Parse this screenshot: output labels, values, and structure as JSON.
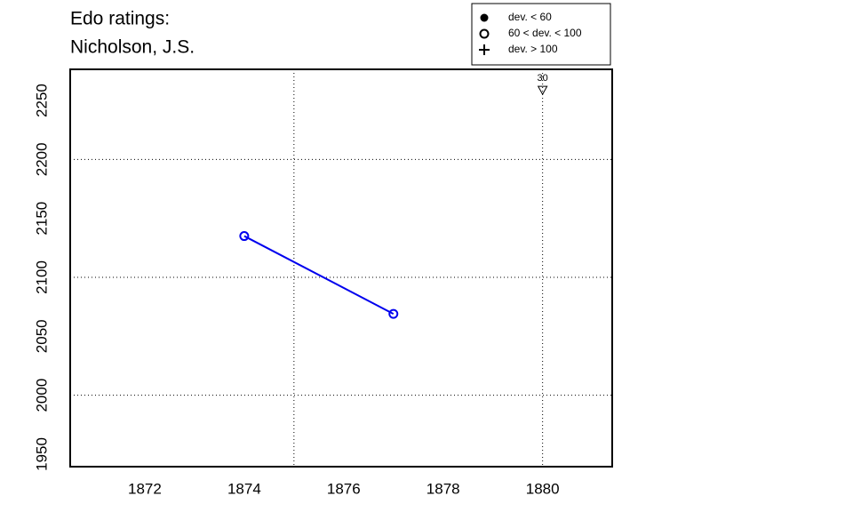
{
  "chart_data": {
    "type": "line",
    "title_lines": [
      "Edo ratings:",
      "Nicholson, J.S."
    ],
    "x": [
      1874,
      1877
    ],
    "series": [
      {
        "color": "#0000ee",
        "marker": "open-circle",
        "values": [
          2135,
          2069
        ]
      }
    ],
    "xlim": [
      1870.5,
      1881.4
    ],
    "ylim": [
      1939.4,
      2276.4
    ],
    "xticks": [
      1872,
      1874,
      1876,
      1878,
      1880
    ],
    "yticks": [
      1950,
      2000,
      2050,
      2100,
      2150,
      2200,
      2250
    ],
    "grid_x": [
      1875,
      1880
    ],
    "grid_y": [
      2000,
      2100,
      2200
    ],
    "annotations": [
      {
        "x": 1880,
        "y": 2259,
        "label": "30",
        "marker": "down-triangle"
      }
    ],
    "legend": {
      "position": "top-right-outside",
      "entries": [
        {
          "label": "dev. < 60",
          "symbol": "filled-circle"
        },
        {
          "label": "60 < dev. < 100",
          "symbol": "open-circle"
        },
        {
          "label": "dev. > 100",
          "symbol": "plus"
        }
      ]
    }
  }
}
